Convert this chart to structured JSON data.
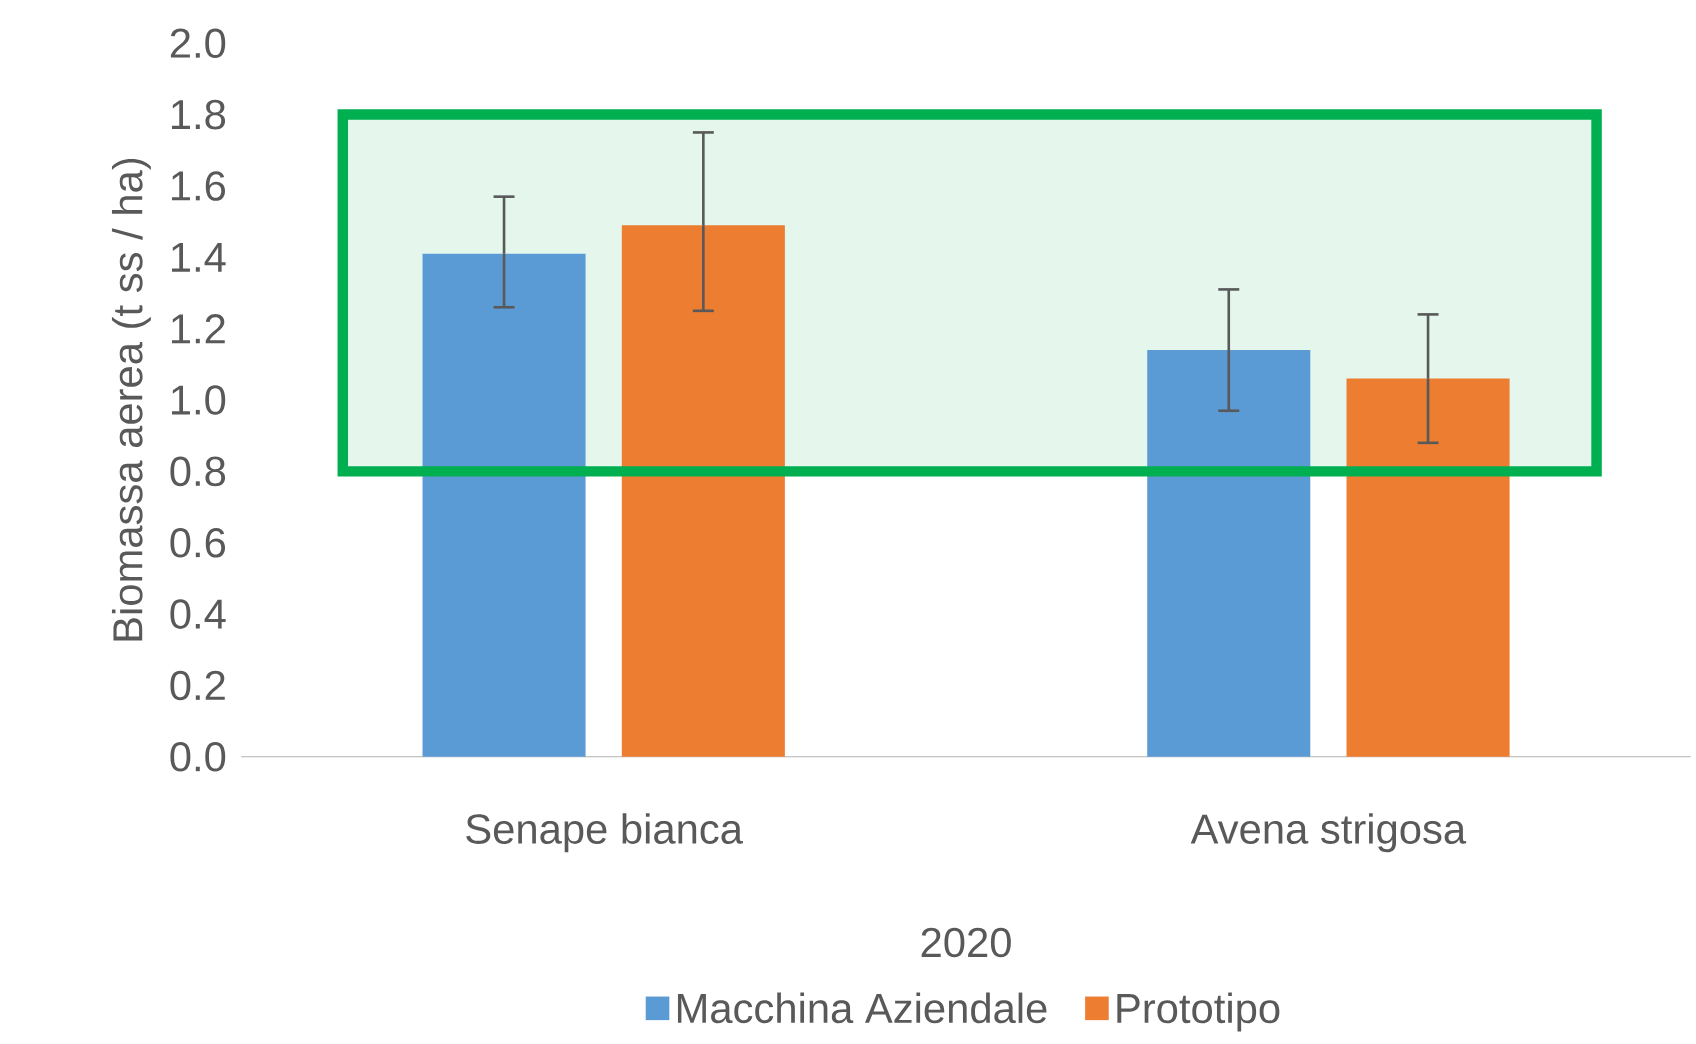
{
  "chart_data": {
    "type": "bar",
    "ylabel": "Biomassa aerea (t ss / ha)",
    "xlabel": "2020",
    "categories": [
      "Senape bianca",
      "Avena strigosa"
    ],
    "series": [
      {
        "name": "Macchina Aziendale",
        "color": "#5b9bd5",
        "values": [
          1.41,
          1.14
        ],
        "errors": [
          [
            1.26,
            1.57
          ],
          [
            0.97,
            1.31
          ]
        ]
      },
      {
        "name": "Prototipo",
        "color": "#ed7d31",
        "values": [
          1.49,
          1.06
        ],
        "errors": [
          [
            1.25,
            1.75
          ],
          [
            0.88,
            1.24
          ]
        ]
      }
    ],
    "ylim": [
      0,
      2
    ],
    "yticks": [
      {
        "value": 0,
        "label": "0.0"
      },
      {
        "value": 0.2,
        "label": "0.2"
      },
      {
        "value": 0.4,
        "label": "0.4"
      },
      {
        "value": 0.6,
        "label": "0.6"
      },
      {
        "value": 0.8,
        "label": "0.8"
      },
      {
        "value": 1.0,
        "label": "1.0"
      },
      {
        "value": 1.2,
        "label": "1.2"
      },
      {
        "value": 1.4,
        "label": "1.4"
      },
      {
        "value": 1.6,
        "label": "1.6"
      },
      {
        "value": 1.8,
        "label": "1.8"
      },
      {
        "value": 2.0,
        "label": "2.0"
      }
    ],
    "bands": [
      {
        "axis": "y",
        "from": 0.8,
        "to": 1.8
      }
    ],
    "legend": "bottom",
    "grid": false
  }
}
